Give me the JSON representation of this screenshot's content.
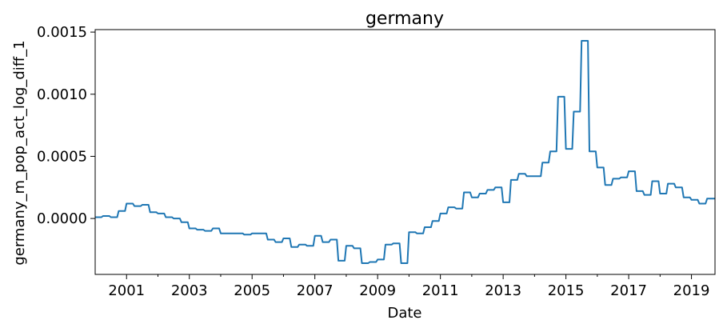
{
  "chart_data": {
    "type": "line",
    "title": "germany",
    "xlabel": "Date",
    "ylabel": "germany_m_pop_act_log_diff_1",
    "xlim": [
      2000.0,
      2019.75
    ],
    "ylim": [
      -0.00045,
      0.00152
    ],
    "x_ticks": [
      {
        "value": 2001,
        "label": "2001"
      },
      {
        "value": 2003,
        "label": "2003"
      },
      {
        "value": 2005,
        "label": "2005"
      },
      {
        "value": 2007,
        "label": "2007"
      },
      {
        "value": 2009,
        "label": "2009"
      },
      {
        "value": 2011,
        "label": "2011"
      },
      {
        "value": 2013,
        "label": "2013"
      },
      {
        "value": 2015,
        "label": "2015"
      },
      {
        "value": 2017,
        "label": "2017"
      },
      {
        "value": 2019,
        "label": "2019"
      }
    ],
    "x_minor_ticks": [
      2002,
      2004,
      2006,
      2008,
      2010,
      2012,
      2014,
      2016,
      2018
    ],
    "y_ticks": [
      {
        "value": 0.0,
        "label": "0.0000"
      },
      {
        "value": 0.0005,
        "label": "0.0005"
      },
      {
        "value": 0.001,
        "label": "0.0010"
      },
      {
        "value": 0.0015,
        "label": "0.0015"
      }
    ],
    "grid": false,
    "legend": "none",
    "color": "#1f77b4",
    "series": [
      {
        "x": [
          2000.0,
          2000.25,
          2000.5,
          2000.75,
          2001.0,
          2001.25,
          2001.5,
          2001.75,
          2002.0,
          2002.25,
          2002.5,
          2002.75,
          2003.0,
          2003.25,
          2003.5,
          2003.75,
          2004.0,
          2004.25,
          2004.5,
          2004.75,
          2005.0,
          2005.25,
          2005.5,
          2005.75,
          2006.0,
          2006.25,
          2006.5,
          2006.75,
          2007.0,
          2007.25,
          2007.5,
          2007.75,
          2008.0,
          2008.25,
          2008.5,
          2008.75,
          2009.0,
          2009.25,
          2009.5,
          2009.75,
          2010.0,
          2010.25,
          2010.5,
          2010.75,
          2011.0,
          2011.25,
          2011.5,
          2011.75,
          2012.0,
          2012.25,
          2012.5,
          2012.75,
          2013.0,
          2013.25,
          2013.5,
          2013.75,
          2014.0,
          2014.25,
          2014.5,
          2014.75,
          2015.0,
          2015.25,
          2015.5,
          2015.75,
          2016.0,
          2016.25,
          2016.5,
          2016.75,
          2017.0,
          2017.25,
          2017.5,
          2017.75,
          2018.0,
          2018.25,
          2018.5,
          2018.75,
          2019.0,
          2019.25,
          2019.5,
          2019.75
        ],
        "values": [
          1e-05,
          2e-05,
          1e-05,
          6e-05,
          0.00012,
          0.0001,
          0.00011,
          5e-05,
          4e-05,
          1e-05,
          0.0,
          -3e-05,
          -8e-05,
          -9e-05,
          -0.0001,
          -8e-05,
          -0.00012,
          -0.00012,
          -0.00012,
          -0.00013,
          -0.00012,
          -0.00012,
          -0.00017,
          -0.00019,
          -0.00016,
          -0.00023,
          -0.00021,
          -0.00022,
          -0.00014,
          -0.00019,
          -0.00017,
          -0.00034,
          -0.00022,
          -0.00024,
          -0.00036,
          -0.00035,
          -0.00033,
          -0.00021,
          -0.0002,
          -0.00036,
          -0.00011,
          -0.00012,
          -7e-05,
          -2e-05,
          4e-05,
          9e-05,
          8e-05,
          0.00021,
          0.00017,
          0.0002,
          0.00023,
          0.00025,
          0.00013,
          0.00031,
          0.00036,
          0.00034,
          0.00034,
          0.00045,
          0.00054,
          0.00098,
          0.00056,
          0.00086,
          0.00143,
          0.00054,
          0.00041,
          0.00027,
          0.00032,
          0.00033,
          0.00038,
          0.00022,
          0.00019,
          0.0003,
          0.0002,
          0.00028,
          0.00025,
          0.00017,
          0.00015,
          0.00012,
          0.00016,
          0.00016
        ]
      }
    ]
  }
}
